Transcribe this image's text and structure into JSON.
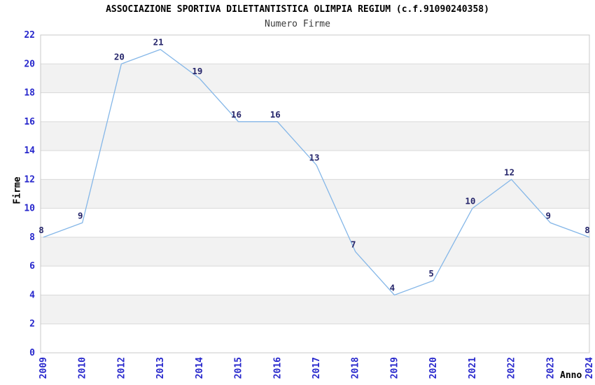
{
  "chart_data": {
    "type": "line",
    "title": "ASSOCIAZIONE SPORTIVA DILETTANTISTICA OLIMPIA REGIUM (c.f.91090240358)",
    "subtitle": "Numero Firme",
    "xlabel": "Anno",
    "ylabel": "Firme",
    "categories": [
      "2009",
      "2010",
      "2012",
      "2013",
      "2014",
      "2015",
      "2016",
      "2017",
      "2018",
      "2019",
      "2020",
      "2021",
      "2022",
      "2023",
      "2024"
    ],
    "values": [
      8,
      9,
      20,
      21,
      19,
      16,
      16,
      13,
      7,
      4,
      5,
      10,
      12,
      9,
      8
    ],
    "data_labels": [
      "8",
      "9",
      "20",
      "21",
      "19",
      "16",
      "16",
      "13",
      "7",
      "4",
      "5",
      "10",
      "12",
      "9",
      "8"
    ],
    "ylim": [
      0,
      22
    ],
    "yticks": [
      0,
      2,
      4,
      6,
      8,
      10,
      12,
      14,
      16,
      18,
      20,
      22
    ],
    "grid": "horizontal",
    "band_fill": "alternating",
    "legend": "none",
    "colors": {
      "line": "#85b7e8",
      "data_label": "#26266b",
      "tick_label": "#2727cc",
      "band": "#f2f2f2",
      "grid": "#d9d9d9",
      "border": "#c8c8c8",
      "title": "#000000",
      "subtitle": "#3a3a3a",
      "axis_title": "#000000",
      "background": "#ffffff"
    }
  }
}
